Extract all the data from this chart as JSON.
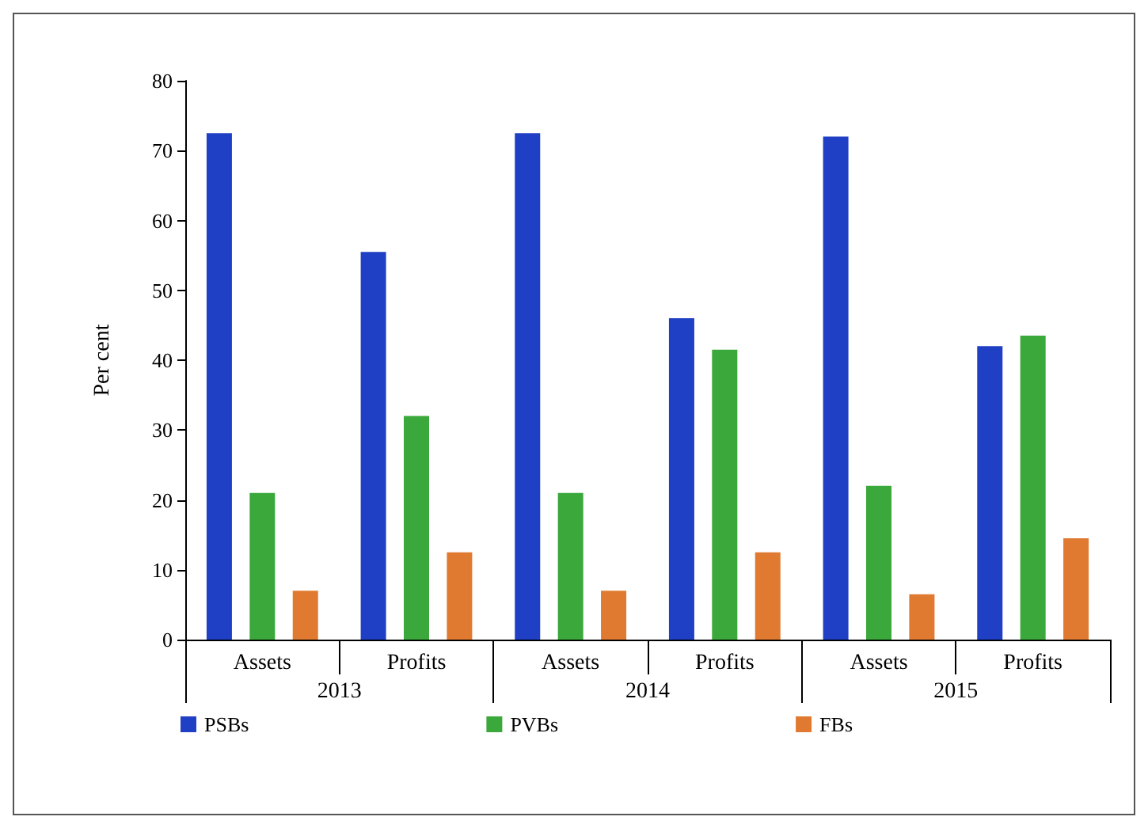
{
  "chart_data": {
    "type": "bar",
    "ylabel": "Per cent",
    "categories": [
      "Assets",
      "Profits",
      "Assets",
      "Profits",
      "Assets",
      "Profits"
    ],
    "annotations": [
      "2013",
      "2014",
      "2015"
    ],
    "series": [
      {
        "name": "PSBs",
        "color": "#1f3fc4",
        "values": [
          72.5,
          55.5,
          72.5,
          46,
          72,
          42
        ]
      },
      {
        "name": "PVBs",
        "color": "#3aa83a",
        "values": [
          21,
          32,
          21,
          41.5,
          22,
          43.5
        ]
      },
      {
        "name": "FBs",
        "color": "#e07a30",
        "values": [
          7,
          12.5,
          7,
          12.5,
          6.5,
          14.5
        ]
      }
    ],
    "ylim": [
      0,
      80
    ],
    "yticks": [
      0,
      10,
      20,
      30,
      40,
      50,
      60,
      70,
      80
    ],
    "grid": false,
    "legend": "bottom"
  }
}
